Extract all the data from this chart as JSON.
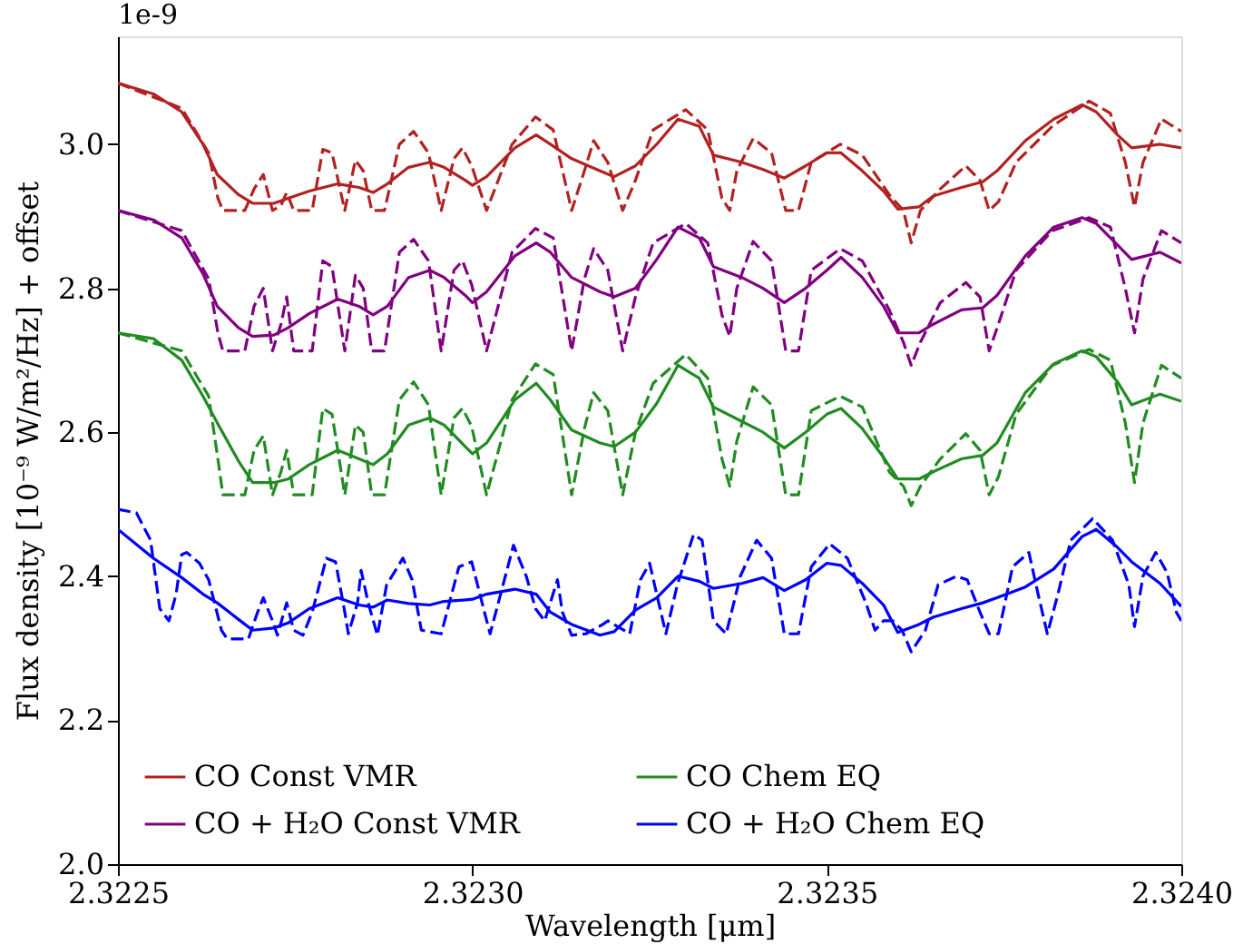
{
  "chart_data": {
    "type": "line",
    "xlabel": "Wavelength [μm]",
    "ylabel": "Flux density [10⁻⁹ W/m²/Hz] + offset",
    "annotations": [
      "1e-9"
    ],
    "xlim": [
      2.3225,
      2.324
    ],
    "ylim": [
      2.0,
      3.15
    ],
    "xticks": [
      {
        "value": 2.3225,
        "label": "2.3225"
      },
      {
        "value": 2.323,
        "label": "2.3230"
      },
      {
        "value": 2.3235,
        "label": "2.3235"
      },
      {
        "value": 2.324,
        "label": "2.3240"
      }
    ],
    "yticks": [
      {
        "value": 2.0,
        "label": "2.0"
      },
      {
        "value": 2.2,
        "label": "2.2"
      },
      {
        "value": 2.4,
        "label": "2.4"
      },
      {
        "value": 2.6,
        "label": "2.6"
      },
      {
        "value": 2.8,
        "label": "2.8"
      },
      {
        "value": 3.0,
        "label": "3.0"
      }
    ],
    "grid": false,
    "legend": "bottom left",
    "marker": "none",
    "series": [
      {
        "name": "CO Const VMR",
        "color": "#b22222",
        "line_style": "solid",
        "x": [
          2.3225,
          2.32255,
          2.32259,
          2.32262,
          2.32264,
          2.32267,
          2.32269,
          2.32272,
          2.32274,
          2.32277,
          2.32281,
          2.32284,
          2.32286,
          2.32288,
          2.32291,
          2.32294,
          2.32296,
          2.32299,
          2.323,
          2.32302,
          2.32306,
          2.32309,
          2.32311,
          2.32314,
          2.32318,
          2.3232,
          2.32323,
          2.32326,
          2.32329,
          2.32332,
          2.32334,
          2.32338,
          2.32341,
          2.32344,
          2.32347,
          2.3235,
          2.32352,
          2.32355,
          2.32358,
          2.3236,
          2.32363,
          2.32365,
          2.32369,
          2.32372,
          2.32374,
          2.32378,
          2.32382,
          2.32386,
          2.32388,
          2.32391,
          2.32393,
          2.32397,
          2.324
        ],
        "values": [
          3.085,
          3.07,
          3.045,
          3.0,
          2.958,
          2.93,
          2.918,
          2.918,
          2.925,
          2.935,
          2.945,
          2.94,
          2.933,
          2.945,
          2.968,
          2.975,
          2.968,
          2.95,
          2.943,
          2.955,
          2.995,
          3.013,
          3.0,
          2.98,
          2.963,
          2.955,
          2.97,
          3.0,
          3.035,
          3.025,
          2.985,
          2.975,
          2.965,
          2.953,
          2.97,
          2.988,
          2.988,
          2.963,
          2.935,
          2.91,
          2.913,
          2.928,
          2.94,
          2.948,
          2.963,
          3.005,
          3.035,
          3.055,
          3.045,
          3.013,
          2.995,
          3.0,
          2.995
        ]
      },
      {
        "color": "#b22222",
        "line_style": "dashed",
        "x": [
          2.3225,
          2.32259,
          2.322628,
          2.322641,
          2.322648,
          2.322679,
          2.322692,
          2.322705,
          2.322718,
          2.32273,
          2.322738,
          2.322748,
          2.322774,
          2.322789,
          2.322802,
          2.32282,
          2.322835,
          2.322846,
          2.322858,
          2.322876,
          2.322897,
          2.322917,
          2.322938,
          2.322956,
          2.322974,
          2.322986,
          2.322999,
          2.32302,
          2.323056,
          2.323089,
          2.323114,
          2.32314,
          2.323158,
          2.323171,
          2.323191,
          2.323212,
          2.32323,
          2.323255,
          2.323301,
          2.323332,
          2.323352,
          2.323363,
          2.323373,
          2.323396,
          2.323422,
          2.323442,
          2.32346,
          2.323478,
          2.323519,
          2.32355,
          2.323588,
          2.323608,
          2.323619,
          2.323632,
          2.32366,
          2.323696,
          2.323716,
          2.323729,
          2.323742,
          2.323767,
          2.323818,
          2.32387,
          2.3239,
          2.323921,
          2.323934,
          2.323946,
          2.323972,
          2.324
        ],
        "values": [
          3.085,
          3.05,
          2.988,
          2.925,
          2.908,
          2.908,
          2.938,
          2.958,
          2.908,
          2.915,
          2.933,
          2.908,
          2.908,
          2.993,
          2.988,
          2.908,
          2.978,
          2.963,
          2.908,
          2.908,
          3.0,
          3.018,
          2.988,
          2.908,
          2.98,
          2.995,
          2.97,
          2.908,
          3.0,
          3.038,
          3.02,
          2.908,
          2.963,
          3.005,
          2.975,
          2.908,
          2.95,
          3.02,
          3.048,
          3.02,
          2.925,
          2.908,
          2.963,
          3.008,
          2.988,
          2.908,
          2.908,
          2.975,
          3.0,
          2.985,
          2.93,
          2.908,
          2.863,
          2.908,
          2.938,
          2.97,
          2.95,
          2.908,
          2.92,
          2.975,
          3.025,
          3.06,
          3.043,
          2.975,
          2.913,
          2.975,
          3.035,
          3.018
        ]
      },
      {
        "name": "CO + H₂O Const VMR",
        "color": "#800080",
        "line_style": "solid",
        "x": [
          2.3225,
          2.32255,
          2.32259,
          2.32262,
          2.32264,
          2.32267,
          2.32269,
          2.32272,
          2.32274,
          2.32277,
          2.32281,
          2.32284,
          2.32286,
          2.32288,
          2.32291,
          2.32294,
          2.32296,
          2.32299,
          2.323,
          2.32302,
          2.32306,
          2.32309,
          2.32311,
          2.32314,
          2.32318,
          2.3232,
          2.32323,
          2.32326,
          2.32329,
          2.32332,
          2.32334,
          2.32338,
          2.32341,
          2.32344,
          2.32347,
          2.3235,
          2.32352,
          2.32355,
          2.32358,
          2.3236,
          2.32363,
          2.32365,
          2.32369,
          2.32372,
          2.32374,
          2.32378,
          2.32382,
          2.32386,
          2.32388,
          2.32391,
          2.32393,
          2.32397,
          2.324
        ],
        "values": [
          2.908,
          2.895,
          2.87,
          2.82,
          2.775,
          2.745,
          2.733,
          2.735,
          2.745,
          2.765,
          2.785,
          2.775,
          2.763,
          2.775,
          2.815,
          2.825,
          2.815,
          2.79,
          2.78,
          2.795,
          2.845,
          2.863,
          2.85,
          2.815,
          2.795,
          2.788,
          2.8,
          2.84,
          2.885,
          2.87,
          2.83,
          2.815,
          2.8,
          2.78,
          2.8,
          2.825,
          2.843,
          2.815,
          2.775,
          2.738,
          2.738,
          2.75,
          2.77,
          2.773,
          2.79,
          2.845,
          2.885,
          2.898,
          2.89,
          2.86,
          2.84,
          2.85,
          2.835
        ]
      },
      {
        "color": "#800080",
        "line_style": "dashed",
        "x": [
          2.3225,
          2.32259,
          2.322628,
          2.322641,
          2.322648,
          2.322679,
          2.322692,
          2.322705,
          2.322718,
          2.32273,
          2.322738,
          2.322748,
          2.322774,
          2.322789,
          2.322802,
          2.32282,
          2.322835,
          2.322846,
          2.322858,
          2.322876,
          2.322897,
          2.322917,
          2.322938,
          2.322956,
          2.322974,
          2.322986,
          2.322999,
          2.32302,
          2.323056,
          2.323089,
          2.323114,
          2.32314,
          2.323158,
          2.323171,
          2.323191,
          2.323212,
          2.32323,
          2.323255,
          2.323301,
          2.323332,
          2.323352,
          2.323363,
          2.323373,
          2.323396,
          2.323422,
          2.323442,
          2.32346,
          2.323478,
          2.323519,
          2.32355,
          2.323588,
          2.323608,
          2.323619,
          2.323632,
          2.32366,
          2.323696,
          2.323716,
          2.323729,
          2.323742,
          2.323767,
          2.323818,
          2.32387,
          2.3239,
          2.323921,
          2.323934,
          2.323946,
          2.323972,
          2.324
        ],
        "values": [
          2.908,
          2.88,
          2.813,
          2.738,
          2.713,
          2.713,
          2.775,
          2.8,
          2.713,
          2.75,
          2.788,
          2.713,
          2.713,
          2.838,
          2.83,
          2.713,
          2.818,
          2.8,
          2.713,
          2.713,
          2.85,
          2.868,
          2.838,
          2.713,
          2.825,
          2.838,
          2.805,
          2.713,
          2.85,
          2.883,
          2.87,
          2.713,
          2.813,
          2.855,
          2.825,
          2.713,
          2.788,
          2.863,
          2.89,
          2.863,
          2.763,
          2.733,
          2.8,
          2.865,
          2.838,
          2.713,
          2.713,
          2.825,
          2.855,
          2.838,
          2.77,
          2.725,
          2.693,
          2.725,
          2.78,
          2.808,
          2.788,
          2.713,
          2.75,
          2.825,
          2.88,
          2.898,
          2.885,
          2.8,
          2.738,
          2.813,
          2.88,
          2.863
        ]
      },
      {
        "name": "CO Chem EQ",
        "color": "#228b22",
        "line_style": "solid",
        "x": [
          2.3225,
          2.32255,
          2.32259,
          2.32262,
          2.32264,
          2.32267,
          2.32269,
          2.32272,
          2.32274,
          2.32277,
          2.32281,
          2.32284,
          2.32286,
          2.32288,
          2.32291,
          2.32294,
          2.32296,
          2.32299,
          2.323,
          2.32302,
          2.32306,
          2.32309,
          2.32311,
          2.32314,
          2.32318,
          2.3232,
          2.32323,
          2.32326,
          2.32329,
          2.32332,
          2.32334,
          2.32338,
          2.32341,
          2.32344,
          2.32347,
          2.3235,
          2.32352,
          2.32355,
          2.32358,
          2.3236,
          2.32363,
          2.32365,
          2.32369,
          2.32372,
          2.32374,
          2.32378,
          2.32382,
          2.32386,
          2.32388,
          2.32391,
          2.32393,
          2.32397,
          2.324
        ],
        "values": [
          2.738,
          2.73,
          2.7,
          2.65,
          2.613,
          2.56,
          2.53,
          2.53,
          2.535,
          2.555,
          2.575,
          2.563,
          2.555,
          2.57,
          2.61,
          2.62,
          2.61,
          2.58,
          2.57,
          2.585,
          2.645,
          2.668,
          2.645,
          2.603,
          2.585,
          2.58,
          2.6,
          2.64,
          2.693,
          2.675,
          2.635,
          2.615,
          2.6,
          2.578,
          2.6,
          2.625,
          2.633,
          2.605,
          2.565,
          2.535,
          2.535,
          2.545,
          2.563,
          2.568,
          2.585,
          2.655,
          2.695,
          2.713,
          2.705,
          2.67,
          2.638,
          2.653,
          2.643
        ]
      },
      {
        "color": "#228b22",
        "line_style": "dashed",
        "x": [
          2.3225,
          2.32259,
          2.322628,
          2.322641,
          2.322648,
          2.322679,
          2.322692,
          2.322705,
          2.322718,
          2.32273,
          2.322738,
          2.322748,
          2.322774,
          2.322789,
          2.322802,
          2.32282,
          2.322835,
          2.322846,
          2.322858,
          2.322876,
          2.322897,
          2.322917,
          2.322938,
          2.322956,
          2.322974,
          2.322986,
          2.322999,
          2.32302,
          2.323056,
          2.323089,
          2.323114,
          2.32314,
          2.323158,
          2.323171,
          2.323191,
          2.323212,
          2.32323,
          2.323255,
          2.323301,
          2.323332,
          2.323352,
          2.323363,
          2.323373,
          2.323396,
          2.323422,
          2.323442,
          2.32346,
          2.323478,
          2.323519,
          2.32355,
          2.323588,
          2.323608,
          2.323619,
          2.323632,
          2.32366,
          2.323696,
          2.323716,
          2.323729,
          2.323742,
          2.323767,
          2.323818,
          2.32387,
          2.3239,
          2.323921,
          2.323934,
          2.323946,
          2.323972,
          2.324
        ],
        "values": [
          2.738,
          2.713,
          2.65,
          2.563,
          2.513,
          2.513,
          2.575,
          2.595,
          2.513,
          2.545,
          2.575,
          2.513,
          2.513,
          2.633,
          2.625,
          2.513,
          2.61,
          2.6,
          2.513,
          2.513,
          2.645,
          2.67,
          2.638,
          2.513,
          2.62,
          2.633,
          2.608,
          2.513,
          2.645,
          2.695,
          2.68,
          2.513,
          2.605,
          2.655,
          2.63,
          2.513,
          2.6,
          2.668,
          2.708,
          2.675,
          2.563,
          2.525,
          2.588,
          2.663,
          2.638,
          2.513,
          2.513,
          2.63,
          2.65,
          2.635,
          2.545,
          2.525,
          2.498,
          2.525,
          2.563,
          2.598,
          2.575,
          2.513,
          2.538,
          2.625,
          2.693,
          2.715,
          2.7,
          2.613,
          2.53,
          2.613,
          2.693,
          2.675
        ]
      },
      {
        "name": "CO + H₂O Chem EQ",
        "color": "#0000ff",
        "line_style": "solid",
        "x": [
          2.3225,
          2.32255,
          2.32259,
          2.32262,
          2.32264,
          2.32267,
          2.32269,
          2.32272,
          2.32274,
          2.32277,
          2.32281,
          2.32284,
          2.32286,
          2.32288,
          2.32291,
          2.32294,
          2.32296,
          2.32299,
          2.323,
          2.32302,
          2.32306,
          2.32309,
          2.32311,
          2.32314,
          2.32318,
          2.3232,
          2.32323,
          2.32326,
          2.32329,
          2.32332,
          2.32334,
          2.32338,
          2.32341,
          2.32344,
          2.32347,
          2.3235,
          2.32352,
          2.32355,
          2.32358,
          2.3236,
          2.32363,
          2.32365,
          2.32369,
          2.32372,
          2.32374,
          2.32378,
          2.32382,
          2.32386,
          2.32388,
          2.32391,
          2.32393,
          2.32397,
          2.324
        ],
        "values": [
          2.465,
          2.425,
          2.398,
          2.375,
          2.363,
          2.34,
          2.325,
          2.328,
          2.335,
          2.355,
          2.37,
          2.36,
          2.357,
          2.367,
          2.362,
          2.36,
          2.365,
          2.367,
          2.368,
          2.375,
          2.382,
          2.375,
          2.35,
          2.333,
          2.318,
          2.323,
          2.353,
          2.37,
          2.4,
          2.393,
          2.383,
          2.39,
          2.398,
          2.38,
          2.395,
          2.418,
          2.415,
          2.39,
          2.36,
          2.322,
          2.333,
          2.343,
          2.355,
          2.363,
          2.37,
          2.385,
          2.41,
          2.455,
          2.465,
          2.44,
          2.42,
          2.39,
          2.358
        ]
      },
      {
        "color": "#0000ff",
        "line_style": "dashed",
        "x": [
          2.3225,
          2.322526,
          2.322546,
          2.322559,
          2.322572,
          2.322582,
          2.32259,
          2.322597,
          2.322615,
          2.322628,
          2.322646,
          2.322654,
          2.322684,
          2.322697,
          2.322705,
          2.322718,
          2.322725,
          2.322738,
          2.322748,
          2.322761,
          2.322774,
          2.322794,
          2.322807,
          2.32282,
          2.322825,
          2.322838,
          2.322843,
          2.322853,
          2.322866,
          2.322879,
          2.322902,
          2.322915,
          2.322928,
          2.322956,
          2.322981,
          2.322999,
          2.323017,
          2.323025,
          2.323058,
          2.323076,
          2.323089,
          2.323102,
          2.32312,
          2.323127,
          2.32314,
          2.32316,
          2.323184,
          2.323191,
          2.323222,
          2.323237,
          2.32325,
          2.32326,
          2.323273,
          2.323289,
          2.323312,
          2.323324,
          2.32334,
          2.323358,
          2.323378,
          2.323401,
          2.323422,
          2.32344,
          2.32346,
          2.323478,
          2.323504,
          2.323529,
          2.323555,
          2.323568,
          2.32358,
          2.323593,
          2.323606,
          2.323619,
          2.323639,
          2.323657,
          2.323683,
          2.323698,
          2.323716,
          2.323729,
          2.323742,
          2.323762,
          2.323785,
          2.323798,
          2.323811,
          2.323826,
          2.323844,
          2.323875,
          2.323903,
          2.323926,
          2.323934,
          2.323946,
          2.323964,
          2.32398,
          2.323993,
          2.324
        ],
        "values": [
          2.493,
          2.488,
          2.45,
          2.355,
          2.338,
          2.375,
          2.43,
          2.433,
          2.418,
          2.395,
          2.325,
          2.313,
          2.313,
          2.35,
          2.37,
          2.338,
          2.318,
          2.363,
          2.325,
          2.318,
          2.35,
          2.425,
          2.42,
          2.35,
          2.32,
          2.363,
          2.408,
          2.363,
          2.318,
          2.388,
          2.425,
          2.395,
          2.325,
          2.32,
          2.413,
          2.42,
          2.35,
          2.32,
          2.443,
          2.4,
          2.355,
          2.338,
          2.395,
          2.35,
          2.318,
          2.32,
          2.333,
          2.338,
          2.32,
          2.395,
          2.418,
          2.375,
          2.32,
          2.388,
          2.458,
          2.45,
          2.338,
          2.32,
          2.4,
          2.45,
          2.425,
          2.32,
          2.32,
          2.413,
          2.445,
          2.425,
          2.363,
          2.325,
          2.338,
          2.338,
          2.325,
          2.295,
          2.325,
          2.388,
          2.4,
          2.395,
          2.35,
          2.32,
          2.32,
          2.413,
          2.433,
          2.375,
          2.32,
          2.375,
          2.45,
          2.48,
          2.45,
          2.388,
          2.33,
          2.4,
          2.433,
          2.405,
          2.35,
          2.338
        ]
      }
    ]
  }
}
